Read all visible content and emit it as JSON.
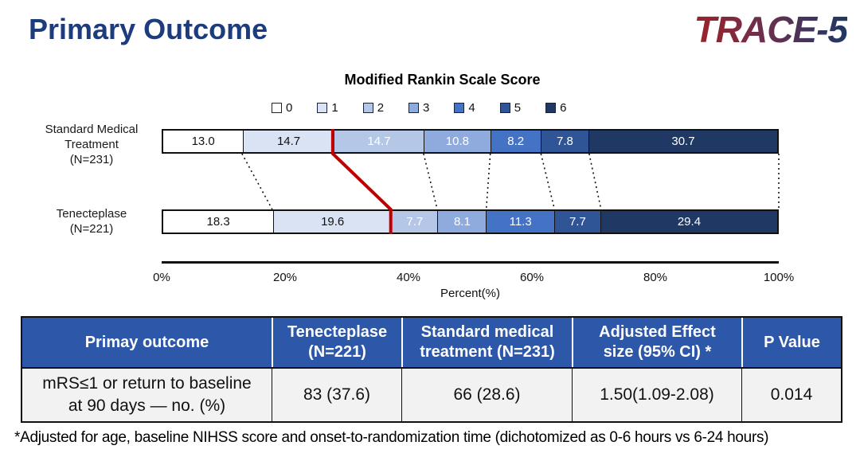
{
  "page": {
    "title": "Primary Outcome",
    "title_color": "#1d3c7d",
    "logo": "TRACE-5",
    "logo_gradient": [
      "#9c2227",
      "#6d2f4e",
      "#1f3864"
    ]
  },
  "chart": {
    "title": "Modified Rankin Scale Score",
    "legend": [
      "0",
      "1",
      "2",
      "3",
      "4",
      "5",
      "6"
    ],
    "segment_colors": [
      "#ffffff",
      "#dae3f3",
      "#b4c7e7",
      "#8faadc",
      "#4472c4",
      "#2f5597",
      "#1f3864"
    ],
    "rows": [
      {
        "label_lines": "Standard Medical\nTreatment\n(N=231)",
        "value_labels": [
          "13.0",
          "14.7",
          "14.7",
          "10.8",
          "8.2",
          "7.8",
          "30.7"
        ],
        "values": [
          13.0,
          14.7,
          14.7,
          10.8,
          8.2,
          7.8,
          30.7
        ]
      },
      {
        "label_lines": "Tenecteplase\n(N=221)",
        "value_labels": [
          "18.3",
          "19.6",
          "7.7",
          "8.1",
          "11.3",
          "7.7",
          "29.4"
        ],
        "values": [
          18.3,
          19.6,
          7.7,
          8.1,
          11.3,
          7.7,
          29.4
        ]
      }
    ],
    "x_ticks": [
      "0%",
      "20%",
      "40%",
      "60%",
      "80%",
      "100%"
    ],
    "x_label": "Percent(%)",
    "red_divider_color": "#c00000",
    "red_divider_after_segment_index": 1,
    "connector_color": "#111111"
  },
  "chart_data": {
    "type": "bar",
    "subtype": "horizontal-stacked-percent",
    "title": "Modified Rankin Scale Score",
    "categories": [
      "Standard Medical Treatment (N=231)",
      "Tenecteplase (N=221)"
    ],
    "series": [
      {
        "name": "0",
        "values": [
          13.0,
          18.3
        ]
      },
      {
        "name": "1",
        "values": [
          14.7,
          19.6
        ]
      },
      {
        "name": "2",
        "values": [
          14.7,
          7.7
        ]
      },
      {
        "name": "3",
        "values": [
          10.8,
          8.1
        ]
      },
      {
        "name": "4",
        "values": [
          8.2,
          11.3
        ]
      },
      {
        "name": "5",
        "values": [
          7.8,
          7.7
        ]
      },
      {
        "name": "6",
        "values": [
          30.7,
          29.4
        ]
      }
    ],
    "xlabel": "Percent(%)",
    "xlim": [
      0,
      100
    ],
    "x_tick_labels": [
      "0%",
      "20%",
      "40%",
      "60%",
      "80%",
      "100%"
    ],
    "legend_position": "top",
    "grid": false,
    "annotations": [
      "red line marks the mRS 0-1 vs 2-6 boundary across both bars",
      "dotted lines connect matching segment boundaries between bars"
    ]
  },
  "table": {
    "header_bg": "#2d57a8",
    "headers": [
      "Primay outcome",
      "Tenecteplase\n(N=221)",
      "Standard medical\ntreatment (N=231)",
      "Adjusted Effect\nsize (95% CI) *",
      "P Value"
    ],
    "rows": [
      [
        "mRS≤1 or return to baseline\nat 90 days — no. (%)",
        "83 (37.6)",
        "66 (28.6)",
        "1.50(1.09-2.08)",
        "0.014"
      ]
    ]
  },
  "footnote": "*Adjusted for age, baseline NIHSS score and onset-to-randomization time (dichotomized as 0-6 hours vs 6-24 hours)"
}
